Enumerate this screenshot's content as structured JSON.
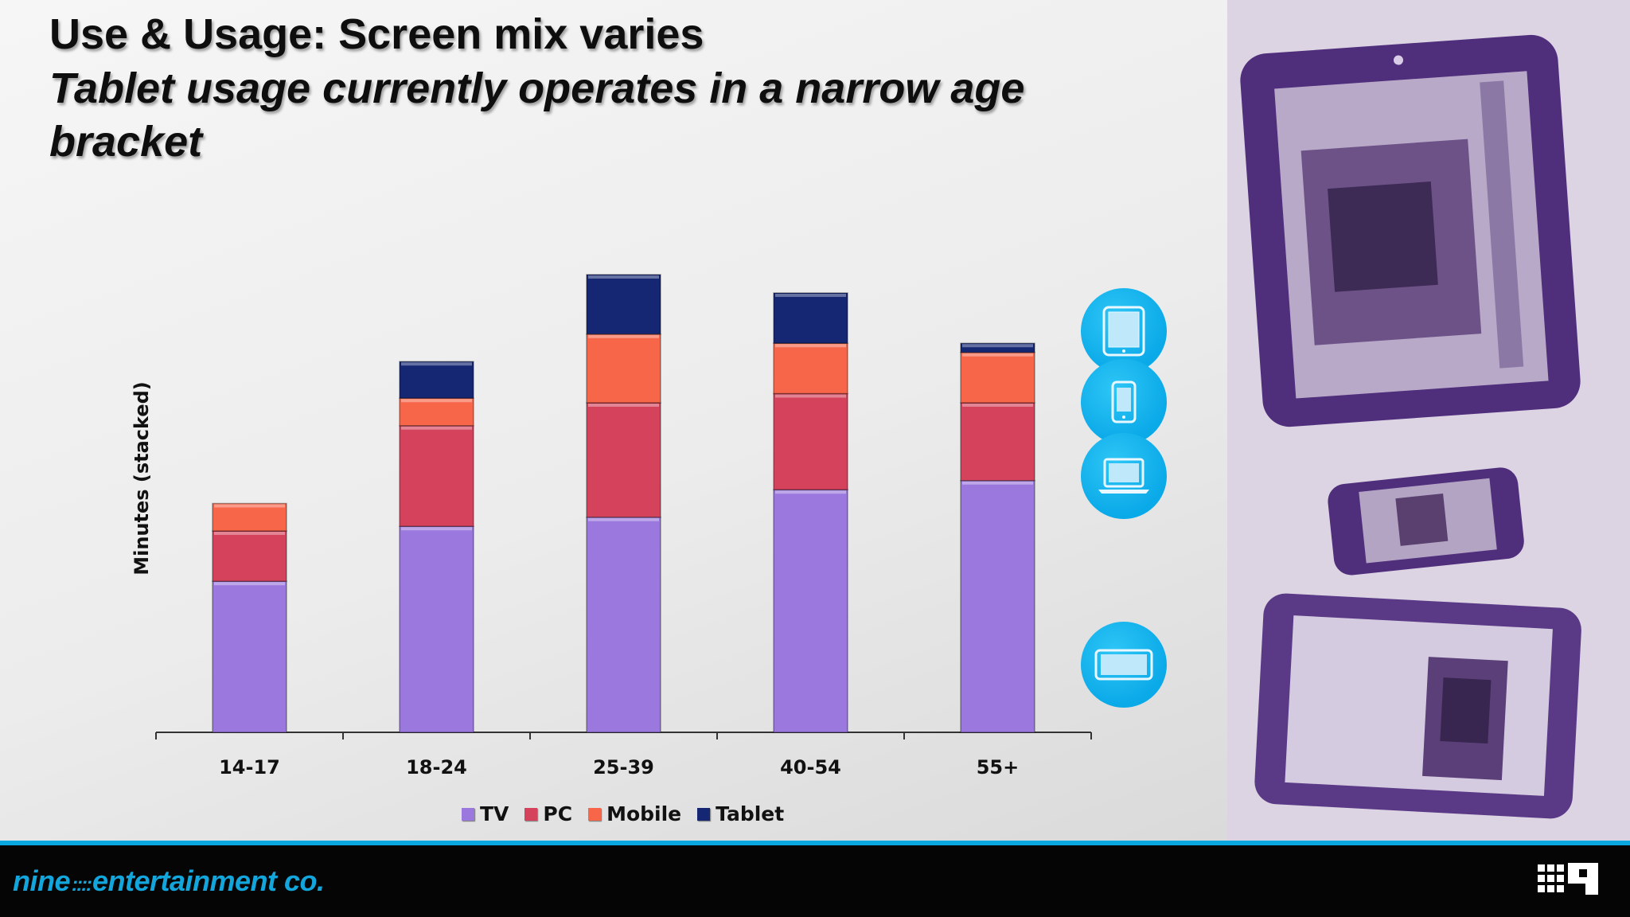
{
  "slide": {
    "title": "Use & Usage: Screen mix varies",
    "subtitle": "Tablet usage currently operates in a narrow age bracket"
  },
  "colors": {
    "tv": "#9a78de",
    "pc": "#d4425c",
    "mobile": "#f8664a",
    "tablet": "#152672",
    "accent": "#0aa7e0"
  },
  "chart_data": {
    "type": "bar",
    "stacked": true,
    "categories": [
      "14-17",
      "18-24",
      "25-39",
      "40-54",
      "55+"
    ],
    "series": [
      {
        "name": "TV",
        "values": [
          33,
          45,
          47,
          53,
          55
        ]
      },
      {
        "name": "PC",
        "values": [
          11,
          22,
          25,
          21,
          17
        ]
      },
      {
        "name": "Mobile",
        "values": [
          6,
          6,
          15,
          11,
          11
        ]
      },
      {
        "name": "Tablet",
        "values": [
          0,
          8,
          13,
          11,
          2
        ]
      }
    ],
    "title": "",
    "xlabel": "",
    "ylabel": "Minutes (stacked)",
    "ylim": [
      0,
      100
    ],
    "grid": false,
    "legend": "bottom"
  },
  "legend_icons": [
    "tablet-icon",
    "smartphone-icon",
    "laptop-icon",
    "tv-icon"
  ],
  "footer": {
    "brand_left": "nine",
    "brand_dots": "::::",
    "brand_right": "entertainment co."
  }
}
